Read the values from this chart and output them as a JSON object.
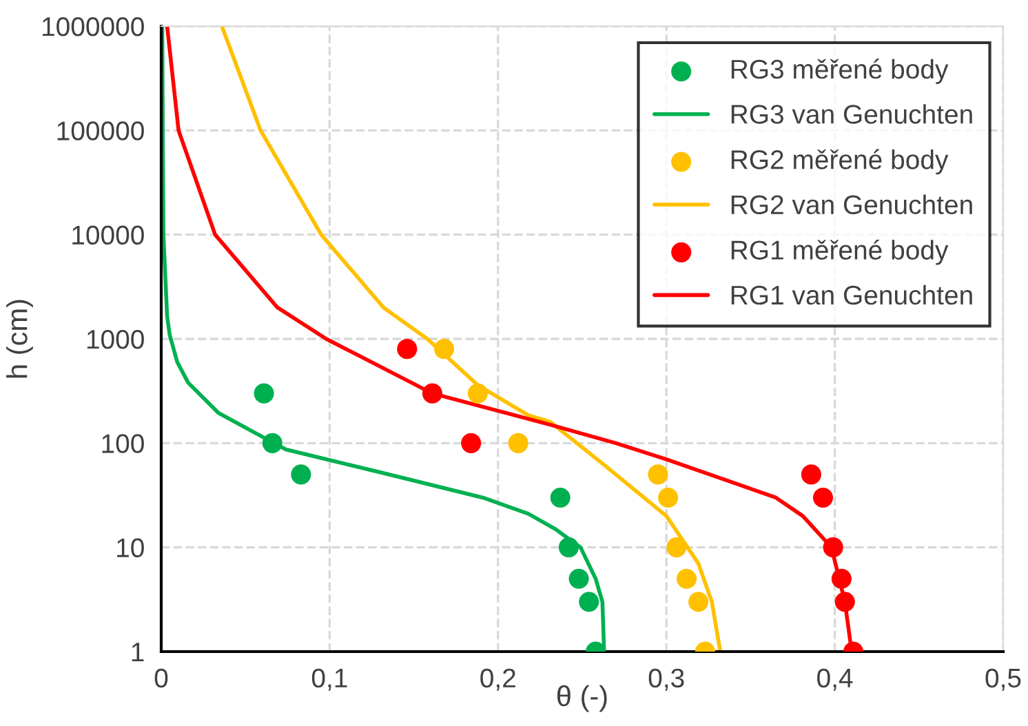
{
  "chart_data": {
    "type": "scatter",
    "xlabel": "θ (-)",
    "ylabel": "h (cm)",
    "log": "y",
    "grid": true,
    "legend": "top right",
    "xlim": [
      0,
      0.5
    ],
    "xticks": [
      0,
      {
        "value": 0.1,
        "label": "0,1"
      },
      {
        "value": 0.2,
        "label": "0,2"
      },
      {
        "value": 0.3,
        "label": "0,3"
      },
      {
        "value": 0.4,
        "label": "0,4"
      },
      {
        "value": 0.5,
        "label": "0,5"
      }
    ],
    "ylim": [
      1,
      1000000
    ],
    "yticks": [
      1,
      10,
      100,
      1000,
      10000,
      100000,
      1000000
    ],
    "series": [
      {
        "name": "RG3 měřené body",
        "marker": "circle",
        "color": "#00b050",
        "x": [
          0.258,
          0.254,
          0.248,
          0.242,
          0.237,
          0.083,
          0.066,
          0.061
        ],
        "values": [
          1,
          3,
          5,
          10,
          30,
          50,
          100,
          300
        ]
      },
      {
        "name": "RG3 van Genuchten",
        "type": "line",
        "marker": "none",
        "line_style": "solid",
        "color": "#00b050",
        "x": [
          0.263,
          0.262,
          0.258,
          0.249,
          0.234,
          0.218,
          0.191,
          0.131,
          0.074,
          0.067,
          0.034,
          0.016,
          0.0095,
          0.005,
          0.0035,
          0.0013,
          0.0009,
          0.0006
        ],
        "values": [
          1,
          3,
          5,
          10,
          15,
          21,
          30,
          52,
          87,
          100,
          195,
          380,
          600,
          1100,
          1650,
          10000,
          100000,
          1000000
        ]
      },
      {
        "name": "RG2 měřené body",
        "marker": "circle",
        "color": "#ffc000",
        "x": [
          0.323,
          0.319,
          0.312,
          0.306,
          0.301,
          0.295,
          0.212,
          0.188,
          0.168
        ],
        "values": [
          1,
          3,
          5,
          10,
          30,
          50,
          100,
          300,
          800
        ]
      },
      {
        "name": "RG2 van Genuchten",
        "type": "line",
        "marker": "none",
        "line_style": "solid",
        "color": "#ffc000",
        "x": [
          0.332,
          0.327,
          0.319,
          0.3,
          0.264,
          0.231,
          0.218,
          0.188,
          0.158,
          0.132,
          0.095,
          0.059,
          0.036
        ],
        "values": [
          1,
          3,
          7,
          20,
          60,
          160,
          185,
          360,
          1000,
          2000,
          10000,
          100000,
          1000000
        ]
      },
      {
        "name": "RG1 měřené body",
        "marker": "circle",
        "color": "#ff0000",
        "x": [
          0.411,
          0.406,
          0.404,
          0.399,
          0.393,
          0.386,
          0.184,
          0.161,
          0.146
        ],
        "values": [
          1,
          3,
          5,
          10,
          30,
          50,
          100,
          300,
          800
        ]
      },
      {
        "name": "RG1 van Genuchten",
        "type": "line",
        "marker": "none",
        "line_style": "solid",
        "color": "#ff0000",
        "x": [
          0.41,
          0.406,
          0.398,
          0.381,
          0.365,
          0.3,
          0.27,
          0.231,
          0.161,
          0.098,
          0.069,
          0.032,
          0.0103,
          0.0035
        ],
        "values": [
          1,
          3,
          10,
          20,
          30,
          70,
          100,
          150,
          300,
          1000,
          2000,
          10000,
          100000,
          1000000
        ]
      }
    ]
  }
}
